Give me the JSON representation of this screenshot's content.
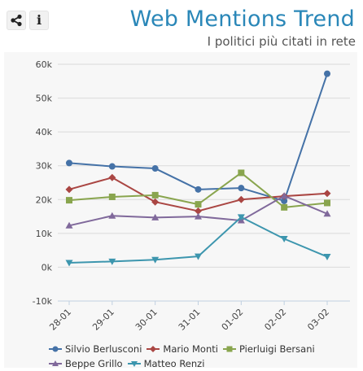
{
  "toolbar": {
    "share_icon": "share-icon",
    "info_icon": "info-icon",
    "info_glyph": "i"
  },
  "header": {
    "title": "Web Mentions Trend",
    "subtitle": "I politici più citati in rete"
  },
  "chart_data": {
    "type": "line",
    "categories": [
      "28-01",
      "29-01",
      "30-01",
      "31-01",
      "01-02",
      "02-02",
      "03-02"
    ],
    "ylim": [
      -10000,
      60000
    ],
    "yticks": [
      -10000,
      0,
      10000,
      20000,
      30000,
      40000,
      50000,
      60000
    ],
    "ytick_labels": [
      "-10k",
      "0k",
      "10k",
      "20k",
      "30k",
      "40k",
      "50k",
      "60k"
    ],
    "grid": true,
    "legend": "bottom",
    "series": [
      {
        "name": "Silvio Berlusconi",
        "color": "#4572a7",
        "marker": "circle",
        "values": [
          30800,
          29800,
          29200,
          23000,
          23400,
          19600,
          57200
        ]
      },
      {
        "name": "Mario Monti",
        "color": "#aa4643",
        "marker": "diamond",
        "values": [
          23000,
          26500,
          19300,
          16600,
          20000,
          21000,
          21800
        ]
      },
      {
        "name": "Pierluigi Bersani",
        "color": "#89a54e",
        "marker": "square",
        "values": [
          19800,
          20800,
          21300,
          18600,
          27900,
          17700,
          19000
        ]
      },
      {
        "name": "Beppe Grillo",
        "color": "#80699b",
        "marker": "triangle",
        "values": [
          12300,
          15200,
          14700,
          15000,
          13800,
          21100,
          15800
        ]
      },
      {
        "name": "Matteo Renzi",
        "color": "#3d96ae",
        "marker": "triangle-down",
        "values": [
          1300,
          1700,
          2200,
          3200,
          14800,
          8400,
          3100
        ]
      }
    ]
  }
}
